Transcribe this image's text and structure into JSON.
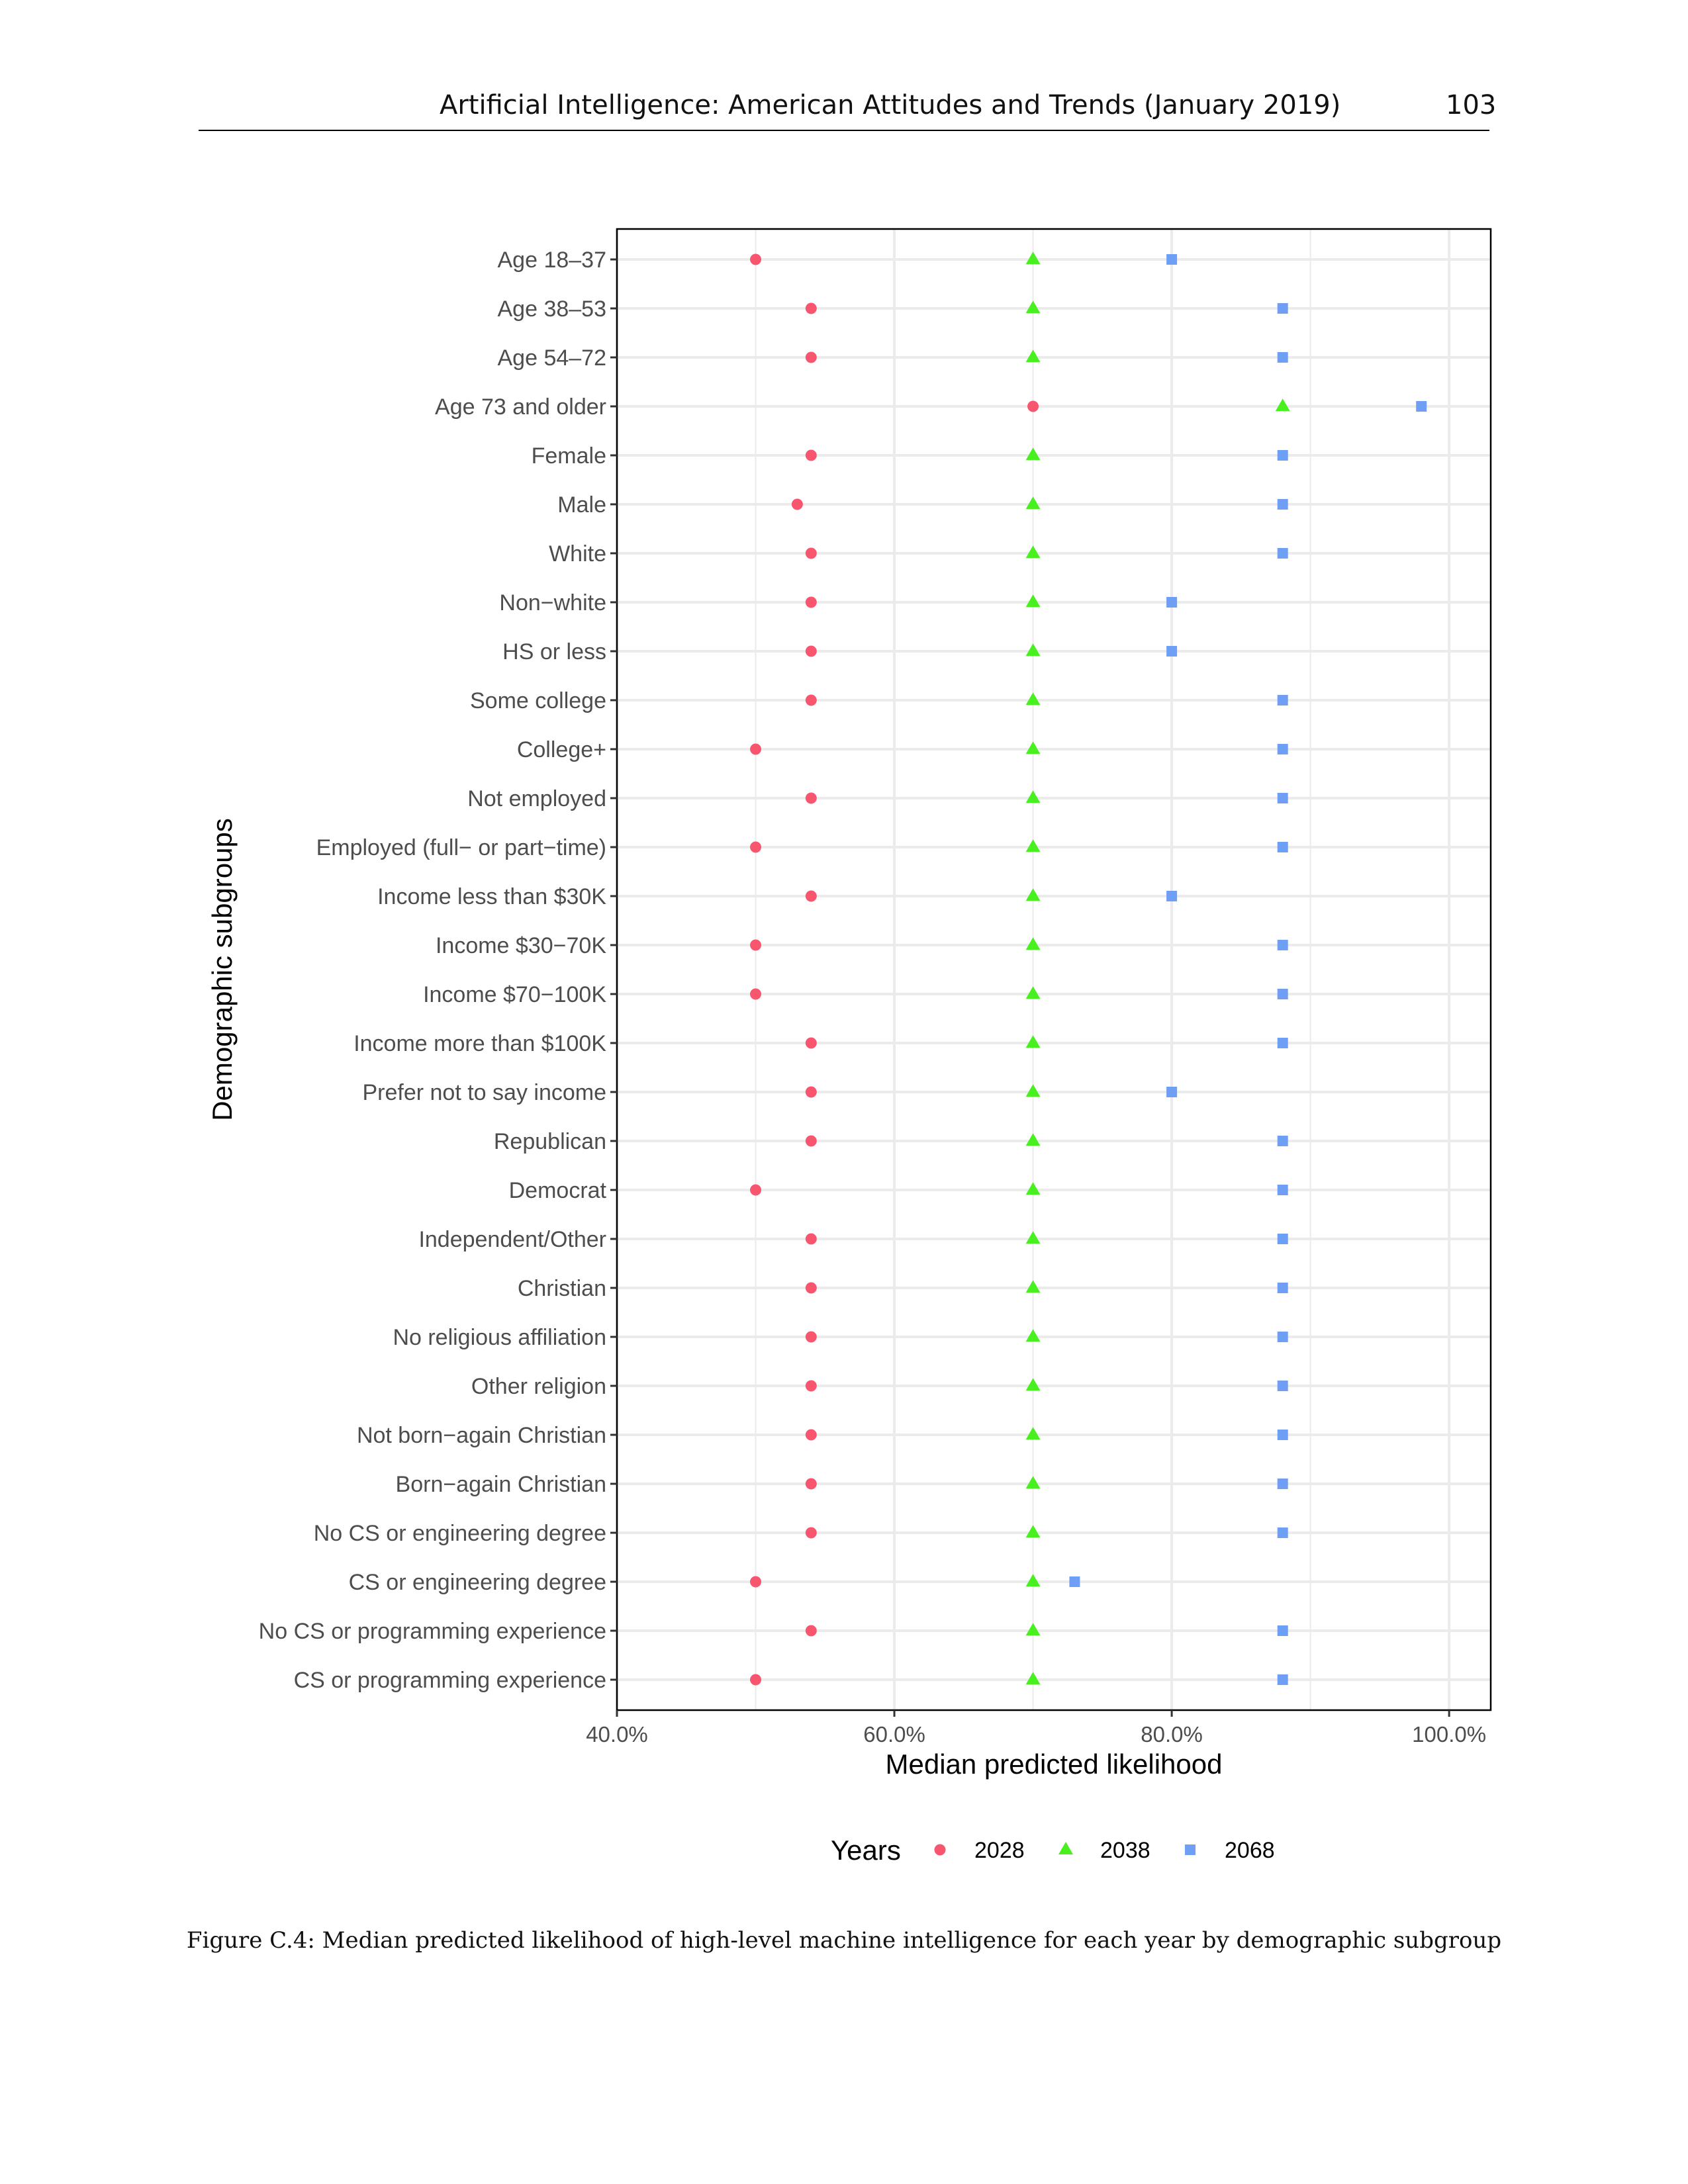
{
  "header": {
    "title": "Artificial Intelligence: American Attitudes and Trends (January 2019)",
    "page_number": "103"
  },
  "caption": "Figure C.4: Median predicted likelihood of high-level machine intelligence for each year by demographic subgroup",
  "colors": {
    "2028": "#F8566F",
    "2038": "#49F01F",
    "2068": "#6E9FF5",
    "grid": "#EBEBEB",
    "axis": "#000000",
    "text": "#4D4D4D"
  },
  "chart_data": {
    "type": "scatter",
    "title": "",
    "xlabel": "Median predicted likelihood",
    "ylabel": "Demographic subgroups",
    "xlim": [
      40,
      103
    ],
    "x_ticks": [
      40,
      60,
      80,
      100
    ],
    "x_tick_labels": [
      "40.0%",
      "60.0%",
      "80.0%",
      "100.0%"
    ],
    "grid": true,
    "legend": {
      "title": "Years",
      "position": "bottom",
      "entries": [
        "2028",
        "2038",
        "2068"
      ]
    },
    "categories": [
      "Age 18–37",
      "Age 38–53",
      "Age 54–72",
      "Age 73 and older",
      "Female",
      "Male",
      "White",
      "Non−white",
      "HS or less",
      "Some college",
      "College+",
      "Not employed",
      "Employed (full− or part−time)",
      "Income less than $30K",
      "Income $30−70K",
      "Income $70−100K",
      "Income more than $100K",
      "Prefer not to say income",
      "Republican",
      "Democrat",
      "Independent/Other",
      "Christian",
      "No religious affiliation",
      "Other religion",
      "Not born−again Christian",
      "Born−again Christian",
      "No CS or engineering degree",
      "CS or engineering degree",
      "No CS or programming experience",
      "CS or programming experience"
    ],
    "series": [
      {
        "name": "2028",
        "marker": "circle",
        "values": [
          50,
          54,
          54,
          70,
          54,
          53,
          54,
          54,
          54,
          54,
          50,
          54,
          50,
          54,
          50,
          50,
          54,
          54,
          54,
          50,
          54,
          54,
          54,
          54,
          54,
          54,
          54,
          50,
          54,
          50
        ]
      },
      {
        "name": "2038",
        "marker": "triangle",
        "values": [
          70,
          70,
          70,
          88,
          70,
          70,
          70,
          70,
          70,
          70,
          70,
          70,
          70,
          70,
          70,
          70,
          70,
          70,
          70,
          70,
          70,
          70,
          70,
          70,
          70,
          70,
          70,
          70,
          70,
          70
        ]
      },
      {
        "name": "2068",
        "marker": "square",
        "values": [
          80,
          88,
          88,
          98,
          88,
          88,
          88,
          80,
          80,
          88,
          88,
          88,
          88,
          80,
          88,
          88,
          88,
          80,
          88,
          88,
          88,
          88,
          88,
          88,
          88,
          88,
          88,
          73,
          88,
          88
        ]
      }
    ]
  }
}
